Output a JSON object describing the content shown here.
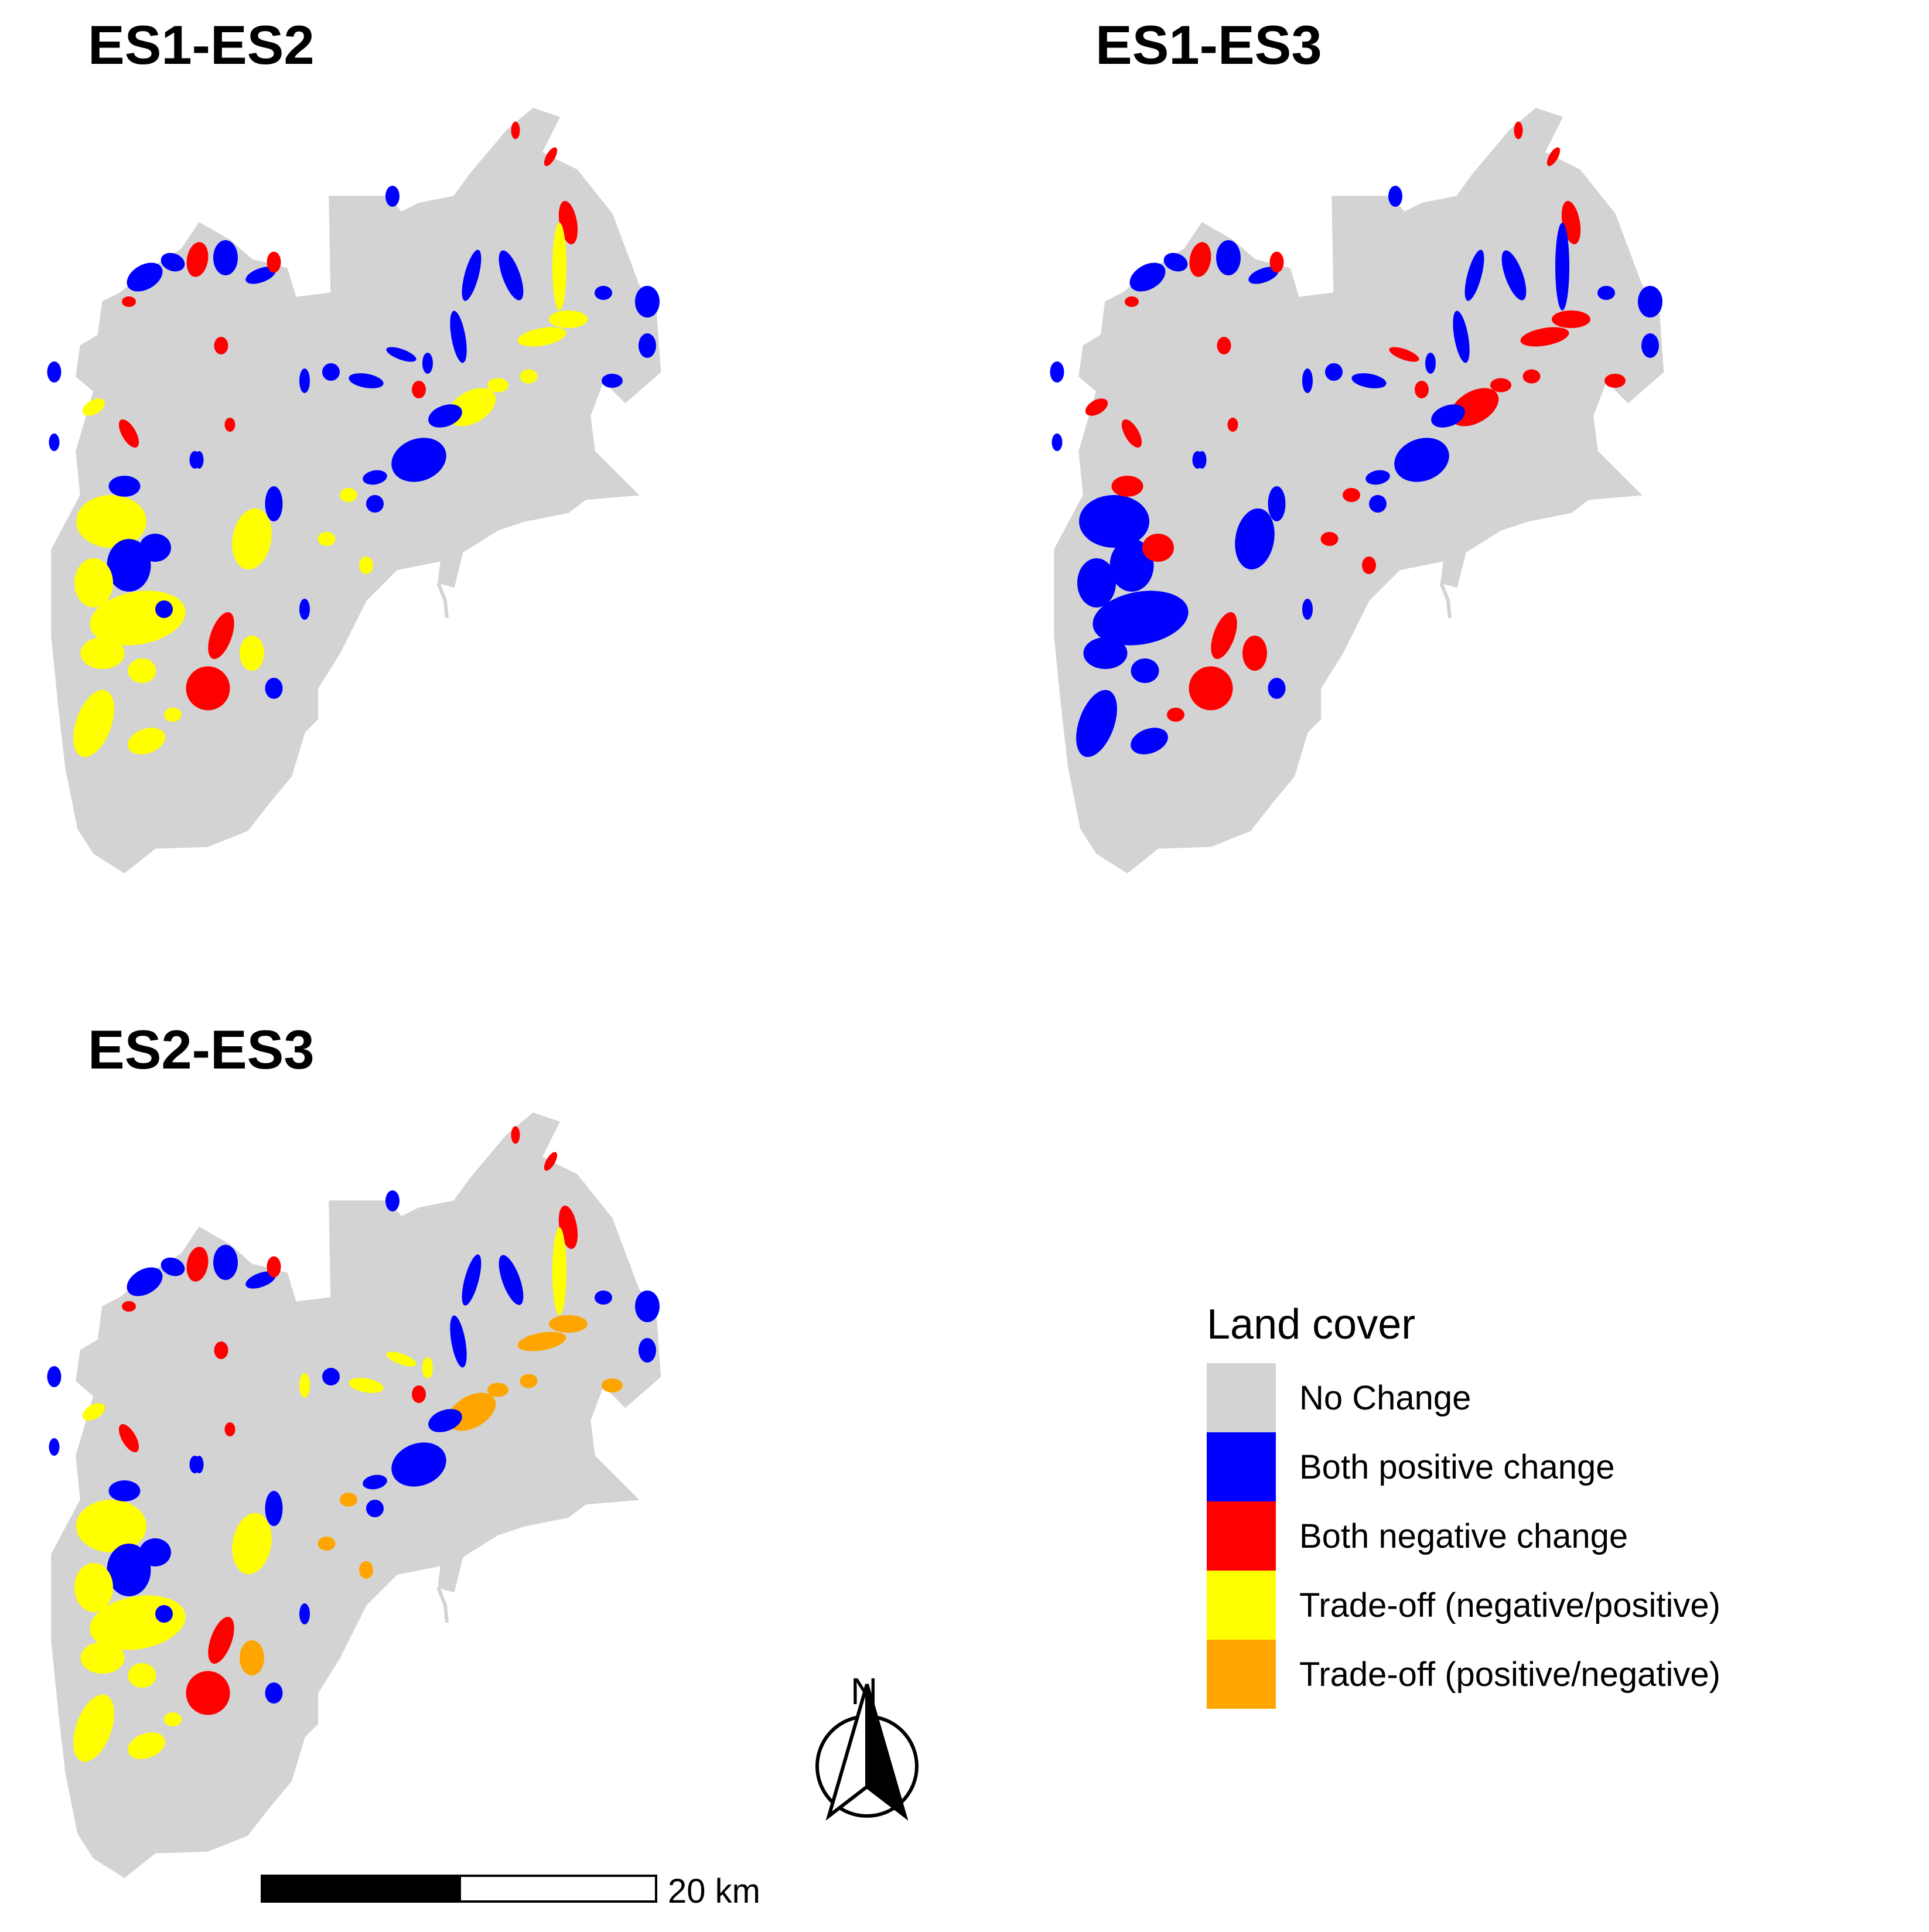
{
  "panels": [
    {
      "title": "ES1-ES2"
    },
    {
      "title": "ES1-ES3"
    },
    {
      "title": "ES2-ES3"
    }
  ],
  "legend": {
    "title": "Land cover",
    "items": [
      {
        "label": "No Change",
        "color": "#d3d3d3"
      },
      {
        "label": "Both positive change",
        "color": "#0000ff"
      },
      {
        "label": "Both negative change",
        "color": "#ff0000"
      },
      {
        "label": "Trade-off (negative/positive)",
        "color": "#ffff00"
      },
      {
        "label": "Trade-off (positive/negative)",
        "color": "#ffa500"
      }
    ]
  },
  "north_arrow": {
    "label": "N"
  },
  "scale_bar": {
    "label": "20 km"
  },
  "colors": {
    "no_change": "#d3d3d3",
    "both_positive": "#0000ff",
    "both_negative": "#ff0000",
    "tradeoff_neg_pos": "#ffff00",
    "tradeoff_pos_neg": "#ffa500"
  }
}
